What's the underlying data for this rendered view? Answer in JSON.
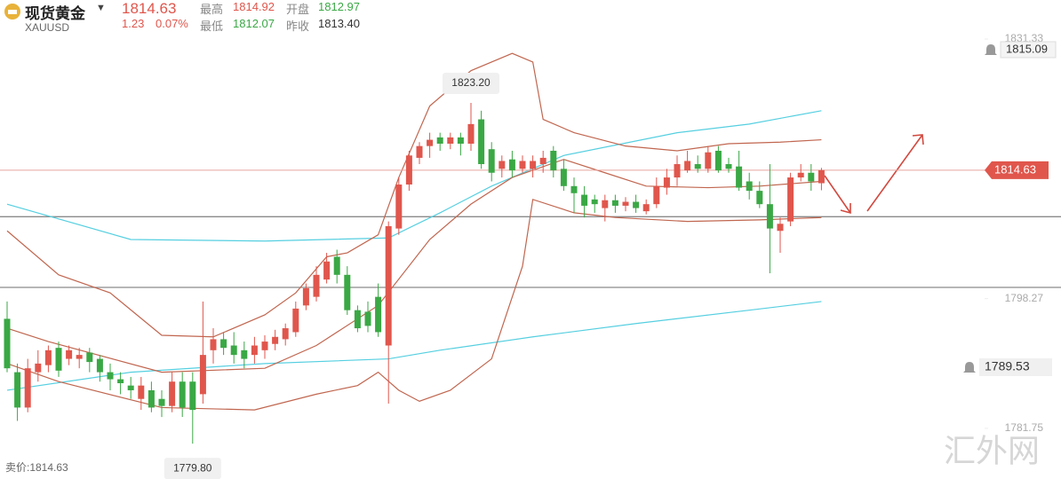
{
  "header": {
    "name": "现货黄金",
    "symbol": "XAUUSD",
    "price": "1814.63",
    "change": "1.23",
    "change_pct": "0.07%",
    "high_label": "最高",
    "high": "1814.92",
    "open_label": "开盘",
    "open": "1812.97",
    "low_label": "最低",
    "low": "1812.07",
    "prev_label": "昨收",
    "prev": "1813.40"
  },
  "footer": "卖价:1814.63",
  "watermark": "汇外网",
  "chart_data": {
    "type": "candlestick",
    "categories": [
      null,
      null,
      null,
      null,
      null,
      null,
      null,
      null,
      null,
      null,
      null,
      null,
      null,
      null,
      null,
      null,
      null,
      null,
      null,
      null,
      null,
      null,
      null,
      null,
      null,
      null,
      null,
      null,
      null,
      null,
      null,
      null,
      null,
      null,
      null,
      null,
      null,
      null,
      null,
      null,
      null,
      null,
      null,
      null,
      null,
      null,
      null,
      null,
      null,
      null,
      null,
      null,
      null,
      null,
      null,
      null,
      null,
      null,
      null,
      null,
      null,
      null,
      null,
      null,
      null,
      null,
      null,
      null,
      null,
      null,
      null,
      null,
      null,
      null,
      null,
      null,
      null,
      null,
      null,
      null
    ],
    "open": [
      1795.7,
      1788.9,
      1784.4,
      1788.9,
      1789.8,
      1792.0,
      1790.6,
      1790.6,
      1791.4,
      1790.6,
      1788.9,
      1788.0,
      1787.2,
      1785.5,
      1786.6,
      1785.5,
      1784.6,
      1787.7,
      1787.7,
      1786.1,
      1791.7,
      1793.1,
      1792.3,
      1791.7,
      1791.1,
      1791.7,
      1792.5,
      1793.1,
      1794.0,
      1797.4,
      1798.5,
      1800.7,
      1803.6,
      1801.3,
      1796.8,
      1796.6,
      1798.5,
      1792.3,
      1807.2,
      1812.8,
      1816.2,
      1817.7,
      1818.8,
      1818.0,
      1818.8,
      1818.0,
      1821.1,
      1817.3,
      1814.8,
      1816.0,
      1814.8,
      1814.8,
      1815.4,
      1817.1,
      1814.8,
      1812.6,
      1811.5,
      1810.9,
      1809.8,
      1810.8,
      1810.1,
      1810.6,
      1809.4,
      1810.3,
      1812.4,
      1813.7,
      1814.6,
      1815.4,
      1814.8,
      1817.1,
      1815.4,
      1815.1,
      1813.2,
      1812.0,
      1810.3,
      1806.9,
      1808.1,
      1813.7,
      1814.3,
      1812.97
    ],
    "high": [
      1797.9,
      1790.0,
      1790.6,
      1791.7,
      1792.3,
      1792.8,
      1792.3,
      1792.0,
      1792.0,
      1791.1,
      1790.0,
      1788.9,
      1788.3,
      1788.3,
      1787.7,
      1786.6,
      1788.9,
      1788.9,
      1788.9,
      1797.9,
      1794.5,
      1794.0,
      1794.0,
      1792.8,
      1793.4,
      1793.6,
      1794.3,
      1795.1,
      1797.9,
      1800.2,
      1802.4,
      1804.1,
      1804.5,
      1802.4,
      1797.4,
      1797.9,
      1800.2,
      1808.1,
      1813.7,
      1817.1,
      1818.2,
      1819.4,
      1819.4,
      1819.4,
      1819.4,
      1823.2,
      1822.2,
      1818.2,
      1816.5,
      1817.1,
      1816.5,
      1816.5,
      1817.1,
      1817.7,
      1816.0,
      1813.7,
      1812.6,
      1811.5,
      1811.5,
      1811.5,
      1811.2,
      1811.5,
      1810.9,
      1813.7,
      1814.8,
      1816.5,
      1817.1,
      1816.5,
      1817.7,
      1817.7,
      1816.2,
      1817.1,
      1814.3,
      1813.2,
      1815.4,
      1808.6,
      1814.3,
      1815.4,
      1815.4,
      1814.92
    ],
    "low": [
      1788.9,
      1782.7,
      1783.8,
      1787.7,
      1788.9,
      1788.3,
      1789.8,
      1789.4,
      1788.9,
      1787.7,
      1786.6,
      1786.1,
      1785.5,
      1784.1,
      1783.8,
      1783.2,
      1783.8,
      1783.2,
      1779.8,
      1784.9,
      1790.0,
      1791.1,
      1790.0,
      1789.4,
      1790.0,
      1790.6,
      1791.7,
      1792.3,
      1793.4,
      1796.8,
      1797.9,
      1800.2,
      1800.2,
      1796.2,
      1794.0,
      1794.0,
      1793.4,
      1784.9,
      1806.4,
      1812.0,
      1815.4,
      1816.2,
      1817.1,
      1817.3,
      1816.5,
      1817.1,
      1814.8,
      1813.2,
      1813.7,
      1813.7,
      1814.3,
      1813.7,
      1814.3,
      1813.7,
      1812.0,
      1809.2,
      1808.6,
      1809.2,
      1808.1,
      1809.2,
      1809.4,
      1809.2,
      1809.0,
      1809.8,
      1811.5,
      1812.6,
      1814.3,
      1814.3,
      1814.3,
      1814.3,
      1814.3,
      1812.0,
      1810.9,
      1809.8,
      1801.5,
      1804.1,
      1807.5,
      1813.2,
      1812.0,
      1812.07
    ],
    "close": [
      1789.4,
      1784.4,
      1789.4,
      1790.0,
      1791.7,
      1789.1,
      1791.7,
      1791.1,
      1790.2,
      1788.9,
      1788.0,
      1787.5,
      1786.6,
      1787.2,
      1784.4,
      1784.6,
      1787.7,
      1784.4,
      1784.1,
      1791.1,
      1793.1,
      1792.0,
      1791.1,
      1790.6,
      1792.3,
      1792.8,
      1793.4,
      1794.5,
      1797.0,
      1799.6,
      1801.3,
      1803.0,
      1801.3,
      1796.8,
      1794.5,
      1794.8,
      1794.0,
      1807.5,
      1812.8,
      1816.5,
      1817.7,
      1818.5,
      1818.0,
      1818.8,
      1818.0,
      1820.5,
      1815.4,
      1814.3,
      1815.8,
      1814.6,
      1815.8,
      1815.8,
      1816.2,
      1814.6,
      1812.6,
      1811.7,
      1810.1,
      1810.3,
      1810.8,
      1810.1,
      1810.6,
      1809.8,
      1810.3,
      1812.6,
      1813.7,
      1815.4,
      1815.8,
      1814.8,
      1816.9,
      1814.6,
      1814.8,
      1812.4,
      1812.0,
      1810.3,
      1807.2,
      1807.8,
      1813.7,
      1814.3,
      1813.2,
      1814.63
    ],
    "up_color": "#e0564c",
    "down_color": "#3aa845",
    "overlays": [
      {
        "color": "#55cfe0",
        "x": [
          0,
          12,
          25,
          37,
          42,
          47,
          54,
          65,
          72,
          79
        ],
        "values": [
          1810.3,
          1805.8,
          1805.6,
          1806.0,
          1809.2,
          1812.6,
          1816.5,
          1819.4,
          1820.5,
          1822.2
        ]
      },
      {
        "color": "#55cfe0",
        "x": [
          0,
          12,
          25,
          37,
          42,
          51,
          61,
          72,
          79
        ],
        "values": [
          1786.6,
          1788.9,
          1790.0,
          1790.6,
          1791.7,
          1793.4,
          1795.1,
          1796.8,
          1797.9
        ]
      },
      {
        "color": "#c0664f",
        "x": [
          0,
          5,
          10,
          15,
          20,
          25,
          28,
          31,
          33,
          36,
          38,
          41,
          45,
          49,
          51,
          52,
          55,
          60,
          65,
          70,
          75,
          79
        ],
        "values": [
          1806.9,
          1801.3,
          1799.0,
          1793.6,
          1793.4,
          1796.2,
          1799.0,
          1803.6,
          1804.1,
          1806.4,
          1813.7,
          1822.8,
          1827.3,
          1829.5,
          1828.4,
          1821.1,
          1819.4,
          1817.7,
          1817.1,
          1818.0,
          1818.2,
          1818.5
        ]
      },
      {
        "color": "#c0664f",
        "x": [
          0,
          4,
          15,
          25,
          30,
          36,
          41,
          45,
          49,
          54,
          58,
          62,
          68,
          73,
          79
        ],
        "values": [
          1794.5,
          1792.8,
          1788.9,
          1789.4,
          1792.3,
          1797.4,
          1805.8,
          1810.3,
          1813.7,
          1816.0,
          1814.3,
          1812.6,
          1812.4,
          1812.6,
          1813.2
        ]
      },
      {
        "color": "#c0664f",
        "x": [
          0,
          5,
          15,
          24,
          30,
          34,
          36,
          38,
          40,
          43,
          47,
          50,
          51,
          55,
          59,
          66,
          73,
          79
        ],
        "values": [
          1790.0,
          1787.7,
          1784.4,
          1784.1,
          1786.1,
          1787.2,
          1788.9,
          1786.6,
          1785.2,
          1786.6,
          1790.6,
          1802.4,
          1810.9,
          1809.2,
          1808.6,
          1808.1,
          1808.3,
          1808.6
        ]
      }
    ],
    "levels": [
      1808.7,
      1799.7
    ],
    "current_price": 1814.63,
    "alerts": [
      1815.09,
      1789.53
    ],
    "annotations": [
      {
        "label": "1823.20",
        "index": 45
      },
      {
        "label": "1779.80",
        "index": 18
      }
    ],
    "ylim": [
      1775.3,
      1836.3
    ],
    "yticks": [
      1831.33,
      1798.27,
      1781.75
    ]
  }
}
